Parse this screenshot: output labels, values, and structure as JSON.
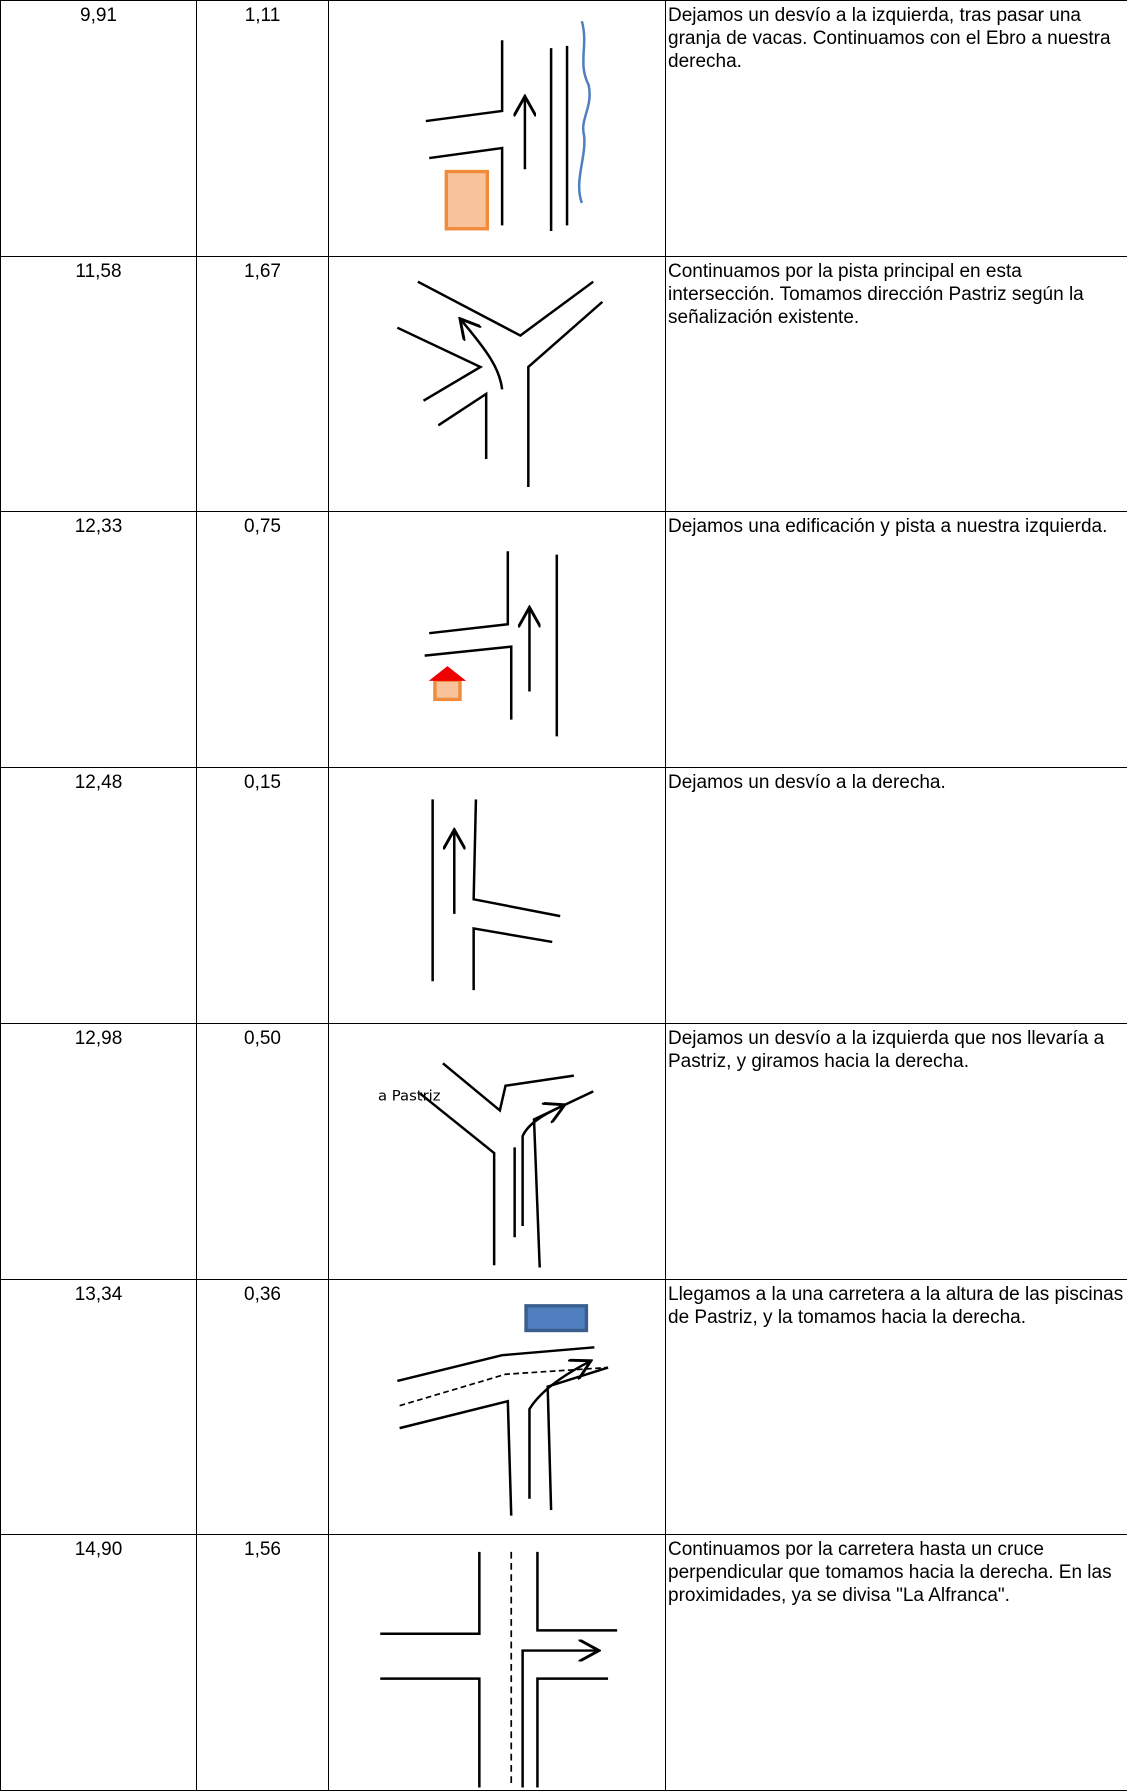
{
  "rows": [
    {
      "km": "9,91",
      "partial": "1,11",
      "description": "Dejamos un desvío a la izquierda, tras pasar una granja de vacas. Continuamos con el Ebro a nuestra derecha."
    },
    {
      "km": "11,58",
      "partial": "1,67",
      "description": "Continuamos por la pista principal en esta intersección. Tomamos dirección Pastriz según la señalización existente."
    },
    {
      "km": "12,33",
      "partial": "0,75",
      "description": "Dejamos una edificación y pista a nuestra izquierda."
    },
    {
      "km": "12,48",
      "partial": "0,15",
      "description": "Dejamos un desvío a la derecha."
    },
    {
      "km": "12,98",
      "partial": "0,50",
      "description": "Dejamos un desvío a la izquierda que nos llevaría a Pastriz, y giramos hacia la derecha.",
      "label": "a Pastriz"
    },
    {
      "km": "13,34",
      "partial": "0,36",
      "description": "Llegamos a la una carretera a la altura de las piscinas de Pastriz, y la tomamos hacia la derecha."
    },
    {
      "km": "14,90",
      "partial": "1,56",
      "description": "Continuamos por la carretera hasta un cruce perpendicular que tomamos hacia la derecha. En las proximidades, ya se divisa \"La Alfranca\"."
    }
  ]
}
